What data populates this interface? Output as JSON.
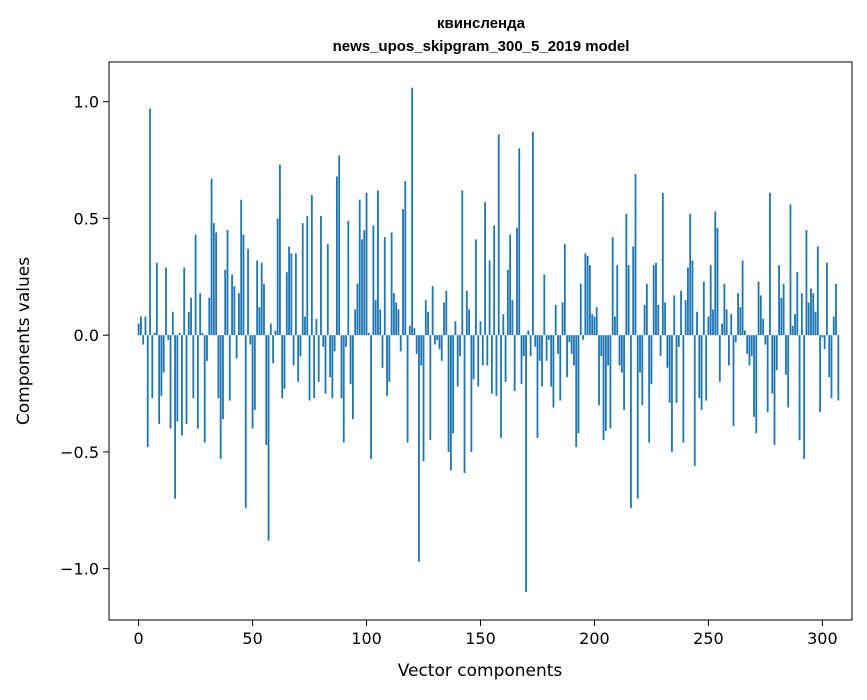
{
  "chart_data": {
    "type": "bar",
    "title_line1": "квинсленда",
    "title_line2": "news_upos_skipgram_300_5_2019 model",
    "xlabel": "Vector components",
    "ylabel": "Components values",
    "xlim": [
      -13,
      313
    ],
    "ylim": [
      -1.22,
      1.17
    ],
    "xticks": [
      0,
      50,
      100,
      150,
      200,
      250,
      300
    ],
    "xtick_labels": [
      "0",
      "50",
      "100",
      "150",
      "200",
      "250",
      "300"
    ],
    "yticks": [
      -1.0,
      -0.5,
      0.0,
      0.5,
      1.0
    ],
    "ytick_labels": [
      "−1.0",
      "−0.5",
      "0.0",
      "0.5",
      "1.0"
    ],
    "bar_color": "#1f77b4",
    "grid": false,
    "values": [
      0.05,
      0.08,
      -0.04,
      0.08,
      -0.48,
      0.97,
      -0.27,
      0.01,
      0.31,
      -0.38,
      -0.26,
      -0.16,
      0.29,
      -0.02,
      -0.4,
      0.1,
      -0.7,
      -0.37,
      0.01,
      -0.43,
      0.29,
      -0.38,
      0.1,
      0.16,
      -0.27,
      0.43,
      -0.4,
      0.18,
      0.01,
      -0.46,
      -0.11,
      0.16,
      0.67,
      0.48,
      0.44,
      -0.27,
      -0.53,
      -0.36,
      0.28,
      0.45,
      -0.28,
      0.26,
      0.21,
      -0.1,
      0.18,
      0.58,
      0.43,
      -0.74,
      0.37,
      -0.04,
      -0.4,
      -0.32,
      0.32,
      0.12,
      0.31,
      0.22,
      -0.47,
      -0.88,
      0.05,
      -0.12,
      0.02,
      0.5,
      0.73,
      -0.27,
      -0.23,
      0.27,
      0.38,
      0.35,
      -0.13,
      0.35,
      -0.2,
      -0.09,
      0.48,
      0.08,
      0.51,
      -0.28,
      0.6,
      -0.27,
      0.07,
      -0.2,
      0.51,
      -0.05,
      -0.25,
      0.39,
      -0.18,
      -0.27,
      -0.07,
      0.68,
      0.77,
      -0.27,
      -0.46,
      -0.05,
      0.49,
      -0.21,
      -0.36,
      0.11,
      0.22,
      0.58,
      0.41,
      0.45,
      0.61,
      0.01,
      -0.53,
      0.47,
      0.15,
      0.62,
      0.11,
      -0.14,
      0.42,
      -0.26,
      -0.2,
      0.44,
      0.18,
      0.14,
      0.11,
      -0.07,
      0.54,
      0.66,
      -0.46,
      0.04,
      1.06,
      0.03,
      -0.08,
      -0.97,
      -0.13,
      -0.54,
      0.15,
      0.1,
      -0.45,
      0.21,
      -0.04,
      -0.02,
      -0.06,
      -0.11,
      0.14,
      0.19,
      -0.5,
      -0.58,
      -0.42,
      0.06,
      -0.22,
      -0.09,
      0.62,
      -0.59,
      0.19,
      0.11,
      -0.5,
      -0.19,
      0.41,
      -0.22,
      0.06,
      -0.13,
      0.57,
      -0.13,
      0.32,
      -0.25,
      0.47,
      -0.26,
      0.86,
      -0.44,
      0.09,
      -0.2,
      0.28,
      0.43,
      0.15,
      -0.24,
      0.46,
      0.8,
      -0.21,
      -0.09,
      -1.1,
      0.02,
      -0.09,
      0.87,
      -0.05,
      -0.44,
      -0.11,
      -0.22,
      0.26,
      -0.11,
      -0.02,
      -0.22,
      -0.31,
      0.13,
      -0.08,
      -0.28,
      0.14,
      0.39,
      -0.18,
      -0.03,
      -0.08,
      -0.13,
      -0.48,
      -0.42,
      0.22,
      -0.02,
      0.35,
      0.34,
      0.3,
      0.09,
      0.08,
      0.12,
      -0.3,
      -0.09,
      -0.45,
      -0.41,
      -0.13,
      -0.4,
      0.42,
      0.08,
      0.3,
      -0.13,
      -0.16,
      -0.32,
      0.52,
      0.3,
      -0.74,
      0.38,
      0.69,
      -0.7,
      -0.16,
      -0.3,
      0.13,
      0.22,
      -0.46,
      -0.21,
      0.3,
      0.31,
      0.13,
      -0.09,
      0.61,
      0.14,
      -0.14,
      -0.29,
      -0.5,
      0.17,
      -0.29,
      -0.05,
      0.19,
      -0.46,
      0.15,
      0.29,
      0.52,
      0.32,
      -0.56,
      0.1,
      -0.27,
      -0.32,
      0.23,
      -0.28,
      0.08,
      0.3,
      0.11,
      0.53,
      0.46,
      -0.2,
      0.05,
      0.22,
      0.11,
      -0.13,
      0.09,
      -0.39,
      -0.03,
      0.18,
      0.12,
      0.32,
      0.02,
      -0.08,
      -0.13,
      -0.09,
      -0.35,
      -0.42,
      0.23,
      0.17,
      0.07,
      -0.04,
      -0.33,
      0.61,
      -0.25,
      -0.47,
      -0.15,
      0.3,
      0.16,
      0.22,
      -0.17,
      -0.31,
      0.56,
      0.04,
      0.09,
      0.27,
      -0.45,
      0.18,
      -0.53,
      0.45,
      0.14,
      0.2,
      0.18,
      0.1,
      0.38,
      -0.33,
      -0.01,
      -0.06,
      0.31,
      -0.18,
      -0.27,
      0.08,
      0.22,
      -0.28
    ]
  }
}
